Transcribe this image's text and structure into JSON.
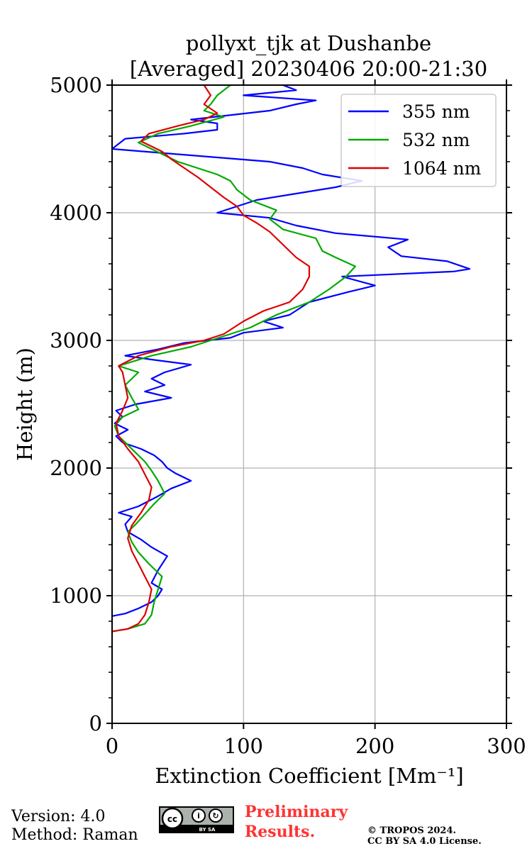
{
  "title_line1": "pollyxt_tjk at Dushanbe",
  "title_line2": "[Averaged] 20230406 20:00-21:30",
  "footer": {
    "version": "Version: 4.0",
    "method": "Method: Raman",
    "preliminary_line1": "Preliminary",
    "preliminary_line2": "Results.",
    "copyright_line1": "© TROPOS 2024.",
    "copyright_line2": "CC BY SA 4.0 License.",
    "cc_badge_text": "BY  SA"
  },
  "chart_data": {
    "type": "line",
    "title": "pollyxt_tjk at Dushanbe [Averaged] 20230406 20:00-21:30",
    "xlabel": "Extinction Coefficient [Mm⁻¹]",
    "ylabel": "Height (m)",
    "xlim": [
      0,
      300
    ],
    "ylim": [
      0,
      5000
    ],
    "xticks": [
      0,
      100,
      200,
      300
    ],
    "yticks": [
      0,
      1000,
      2000,
      3000,
      4000,
      5000
    ],
    "grid": true,
    "legend_position": "top-right",
    "series": [
      {
        "name": "355 nm",
        "color": "#0000ff",
        "points": [
          [
            0,
            840
          ],
          [
            10,
            860
          ],
          [
            20,
            900
          ],
          [
            30,
            950
          ],
          [
            35,
            1000
          ],
          [
            38,
            1050
          ],
          [
            30,
            1100
          ],
          [
            35,
            1200
          ],
          [
            42,
            1310
          ],
          [
            30,
            1380
          ],
          [
            22,
            1440
          ],
          [
            12,
            1500
          ],
          [
            10,
            1560
          ],
          [
            15,
            1620
          ],
          [
            5,
            1650
          ],
          [
            20,
            1700
          ],
          [
            35,
            1780
          ],
          [
            45,
            1840
          ],
          [
            60,
            1900
          ],
          [
            48,
            1960
          ],
          [
            42,
            2000
          ],
          [
            38,
            2050
          ],
          [
            32,
            2100
          ],
          [
            22,
            2150
          ],
          [
            8,
            2200
          ],
          [
            3,
            2250
          ],
          [
            12,
            2300
          ],
          [
            2,
            2350
          ],
          [
            8,
            2400
          ],
          [
            3,
            2450
          ],
          [
            18,
            2500
          ],
          [
            45,
            2550
          ],
          [
            25,
            2600
          ],
          [
            40,
            2650
          ],
          [
            30,
            2700
          ],
          [
            40,
            2750
          ],
          [
            60,
            2810
          ],
          [
            30,
            2850
          ],
          [
            10,
            2880
          ],
          [
            35,
            2930
          ],
          [
            55,
            2980
          ],
          [
            90,
            3020
          ],
          [
            100,
            3060
          ],
          [
            130,
            3100
          ],
          [
            115,
            3150
          ],
          [
            135,
            3200
          ],
          [
            150,
            3300
          ],
          [
            180,
            3380
          ],
          [
            200,
            3430
          ],
          [
            175,
            3500
          ],
          [
            260,
            3540
          ],
          [
            272,
            3560
          ],
          [
            255,
            3620
          ],
          [
            220,
            3660
          ],
          [
            210,
            3730
          ],
          [
            225,
            3790
          ],
          [
            170,
            3840
          ],
          [
            140,
            3900
          ],
          [
            120,
            3960
          ],
          [
            80,
            4000
          ],
          [
            95,
            4050
          ],
          [
            110,
            4100
          ],
          [
            140,
            4150
          ],
          [
            170,
            4200
          ],
          [
            190,
            4250
          ],
          [
            160,
            4300
          ],
          [
            145,
            4350
          ],
          [
            120,
            4400
          ],
          [
            60,
            4450
          ],
          [
            0,
            4500
          ],
          [
            10,
            4580
          ],
          [
            55,
            4620
          ],
          [
            80,
            4650
          ],
          [
            80,
            4700
          ],
          [
            60,
            4730
          ],
          [
            120,
            4800
          ],
          [
            140,
            4850
          ],
          [
            155,
            4880
          ],
          [
            100,
            4920
          ],
          [
            140,
            4960
          ],
          [
            130,
            5000
          ]
        ]
      },
      {
        "name": "532 nm",
        "color": "#00aa00",
        "points": [
          [
            0,
            720
          ],
          [
            12,
            740
          ],
          [
            25,
            780
          ],
          [
            30,
            850
          ],
          [
            32,
            950
          ],
          [
            35,
            1050
          ],
          [
            38,
            1150
          ],
          [
            28,
            1250
          ],
          [
            20,
            1340
          ],
          [
            15,
            1420
          ],
          [
            12,
            1500
          ],
          [
            18,
            1560
          ],
          [
            25,
            1640
          ],
          [
            32,
            1720
          ],
          [
            40,
            1800
          ],
          [
            35,
            1900
          ],
          [
            30,
            1980
          ],
          [
            25,
            2050
          ],
          [
            15,
            2150
          ],
          [
            5,
            2250
          ],
          [
            2,
            2330
          ],
          [
            8,
            2400
          ],
          [
            20,
            2460
          ],
          [
            15,
            2550
          ],
          [
            10,
            2650
          ],
          [
            20,
            2750
          ],
          [
            5,
            2800
          ],
          [
            30,
            2880
          ],
          [
            60,
            2950
          ],
          [
            75,
            3000
          ],
          [
            90,
            3050
          ],
          [
            105,
            3100
          ],
          [
            125,
            3200
          ],
          [
            150,
            3300
          ],
          [
            165,
            3400
          ],
          [
            178,
            3500
          ],
          [
            185,
            3580
          ],
          [
            170,
            3650
          ],
          [
            160,
            3700
          ],
          [
            155,
            3800
          ],
          [
            130,
            3870
          ],
          [
            120,
            3950
          ],
          [
            125,
            4020
          ],
          [
            105,
            4100
          ],
          [
            95,
            4180
          ],
          [
            90,
            4250
          ],
          [
            80,
            4300
          ],
          [
            65,
            4350
          ],
          [
            50,
            4400
          ],
          [
            40,
            4450
          ],
          [
            30,
            4500
          ],
          [
            20,
            4550
          ],
          [
            35,
            4620
          ],
          [
            60,
            4680
          ],
          [
            85,
            4750
          ],
          [
            70,
            4800
          ],
          [
            75,
            4850
          ],
          [
            80,
            4920
          ],
          [
            90,
            5000
          ]
        ]
      },
      {
        "name": "1064 nm",
        "color": "#dd0000",
        "points": [
          [
            0,
            720
          ],
          [
            12,
            740
          ],
          [
            20,
            780
          ],
          [
            25,
            850
          ],
          [
            28,
            950
          ],
          [
            30,
            1050
          ],
          [
            25,
            1150
          ],
          [
            20,
            1250
          ],
          [
            15,
            1350
          ],
          [
            12,
            1450
          ],
          [
            15,
            1550
          ],
          [
            22,
            1650
          ],
          [
            28,
            1750
          ],
          [
            30,
            1850
          ],
          [
            25,
            1950
          ],
          [
            20,
            2050
          ],
          [
            12,
            2150
          ],
          [
            5,
            2250
          ],
          [
            3,
            2350
          ],
          [
            8,
            2450
          ],
          [
            12,
            2550
          ],
          [
            10,
            2650
          ],
          [
            8,
            2750
          ],
          [
            5,
            2800
          ],
          [
            20,
            2880
          ],
          [
            45,
            2950
          ],
          [
            70,
            3000
          ],
          [
            85,
            3050
          ],
          [
            100,
            3150
          ],
          [
            115,
            3230
          ],
          [
            135,
            3300
          ],
          [
            145,
            3400
          ],
          [
            150,
            3500
          ],
          [
            150,
            3580
          ],
          [
            140,
            3650
          ],
          [
            130,
            3750
          ],
          [
            120,
            3850
          ],
          [
            110,
            3920
          ],
          [
            100,
            3980
          ],
          [
            95,
            4050
          ],
          [
            85,
            4120
          ],
          [
            75,
            4200
          ],
          [
            65,
            4280
          ],
          [
            55,
            4350
          ],
          [
            45,
            4420
          ],
          [
            38,
            4480
          ],
          [
            30,
            4520
          ],
          [
            22,
            4560
          ],
          [
            28,
            4620
          ],
          [
            50,
            4680
          ],
          [
            70,
            4730
          ],
          [
            80,
            4780
          ],
          [
            70,
            4850
          ],
          [
            75,
            4920
          ],
          [
            70,
            5000
          ]
        ]
      }
    ]
  }
}
